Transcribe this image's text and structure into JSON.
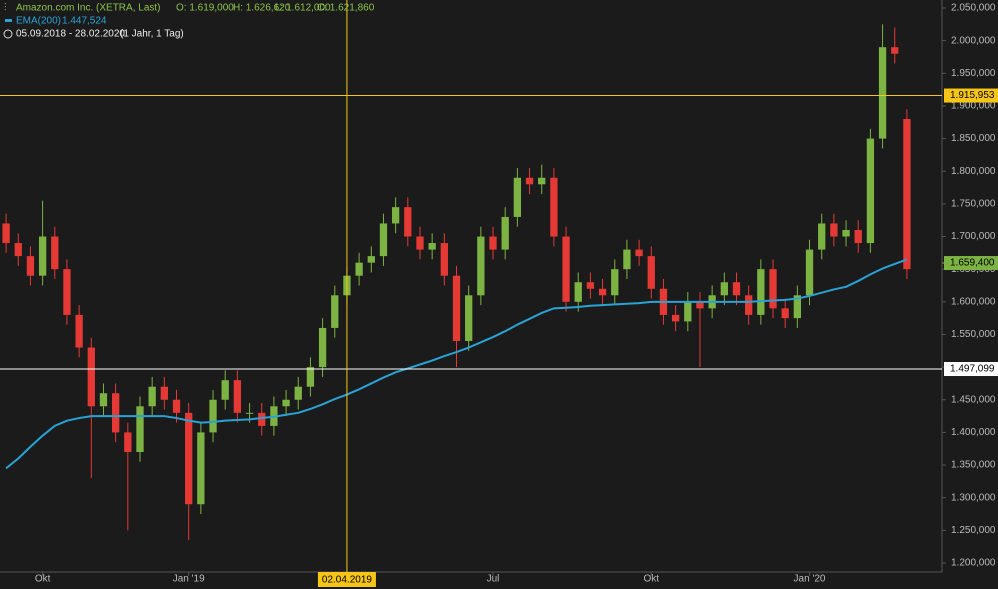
{
  "header": {
    "instrument": "Amazon.com Inc. (XETRA, Last)",
    "open": "O: 1.619,000",
    "high": "H: 1.626,620",
    "low": "L: 1.612,000",
    "close": "C: 1.621,860",
    "indicator": "EMA(200)",
    "indicator_value": "1.447,524",
    "range": "05.09.2018 - 28.02.2020",
    "period": "(1 Jahr, 1 Tag)"
  },
  "chart_data": {
    "type": "candlestick",
    "categories": [
      null,
      null,
      null,
      "Okt",
      null,
      null,
      null,
      null,
      null,
      null,
      null,
      null,
      null,
      null,
      null,
      "Jan '19",
      null,
      null,
      null,
      null,
      null,
      null,
      null,
      null,
      null,
      null,
      null,
      null,
      "02.04.2019",
      null,
      null,
      null,
      null,
      null,
      null,
      null,
      null,
      null,
      null,
      null,
      "Jul",
      null,
      null,
      null,
      null,
      null,
      null,
      null,
      null,
      null,
      null,
      null,
      null,
      "Okt",
      null,
      null,
      null,
      null,
      null,
      null,
      null,
      null,
      null,
      null,
      null,
      null,
      "Jan '20",
      null,
      null,
      null,
      null,
      null,
      null,
      null,
      null
    ],
    "open": [
      1720,
      1690,
      1670,
      1640,
      1700,
      1650,
      1580,
      1530,
      1440,
      1460,
      1400,
      1370,
      1440,
      1470,
      1450,
      1430,
      1290,
      1400,
      1450,
      1480,
      1430,
      1430,
      1410,
      1440,
      1450,
      1470,
      1500,
      1560,
      1610,
      1640,
      1660,
      1670,
      1720,
      1745,
      1700,
      1680,
      1690,
      1640,
      1540,
      1610,
      1700,
      1680,
      1730,
      1790,
      1780,
      1790,
      1700,
      1600,
      1630,
      1620,
      1610,
      1650,
      1680,
      1670,
      1620,
      1580,
      1570,
      1600,
      1590,
      1610,
      1630,
      1610,
      1580,
      1650,
      1590,
      1575,
      1610,
      1680,
      1720,
      1700,
      1710,
      1690,
      1850,
      1990,
      1880
    ],
    "high": [
      1735,
      1705,
      1685,
      1755,
      1715,
      1665,
      1595,
      1545,
      1475,
      1475,
      1415,
      1455,
      1485,
      1485,
      1465,
      1445,
      1415,
      1465,
      1495,
      1495,
      1445,
      1445,
      1455,
      1465,
      1485,
      1515,
      1575,
      1625,
      1655,
      1675,
      1685,
      1735,
      1760,
      1760,
      1715,
      1705,
      1705,
      1655,
      1625,
      1715,
      1715,
      1745,
      1805,
      1805,
      1810,
      1805,
      1715,
      1645,
      1645,
      1635,
      1665,
      1695,
      1695,
      1685,
      1635,
      1595,
      1615,
      1615,
      1625,
      1645,
      1645,
      1625,
      1665,
      1665,
      1605,
      1625,
      1695,
      1735,
      1735,
      1725,
      1725,
      1865,
      2025,
      2020,
      1895
    ],
    "low": [
      1675,
      1655,
      1625,
      1625,
      1635,
      1565,
      1515,
      1330,
      1425,
      1385,
      1250,
      1355,
      1425,
      1435,
      1415,
      1235,
      1275,
      1385,
      1435,
      1415,
      1415,
      1395,
      1395,
      1425,
      1435,
      1455,
      1485,
      1545,
      1595,
      1625,
      1645,
      1655,
      1705,
      1685,
      1665,
      1665,
      1625,
      1500,
      1525,
      1595,
      1665,
      1665,
      1715,
      1765,
      1765,
      1685,
      1585,
      1585,
      1605,
      1595,
      1595,
      1635,
      1655,
      1605,
      1565,
      1555,
      1555,
      1500,
      1575,
      1595,
      1595,
      1565,
      1565,
      1575,
      1560,
      1560,
      1595,
      1665,
      1685,
      1685,
      1675,
      1675,
      1835,
      1965,
      1635
    ],
    "close": [
      1690,
      1670,
      1640,
      1700,
      1650,
      1580,
      1530,
      1440,
      1460,
      1400,
      1370,
      1440,
      1470,
      1450,
      1430,
      1290,
      1400,
      1450,
      1480,
      1430,
      1430,
      1410,
      1440,
      1450,
      1470,
      1500,
      1560,
      1610,
      1640,
      1660,
      1670,
      1720,
      1745,
      1700,
      1680,
      1690,
      1640,
      1540,
      1610,
      1700,
      1680,
      1730,
      1790,
      1780,
      1790,
      1700,
      1600,
      1630,
      1620,
      1610,
      1650,
      1680,
      1670,
      1620,
      1580,
      1570,
      1600,
      1590,
      1610,
      1630,
      1610,
      1580,
      1650,
      1590,
      1575,
      1610,
      1680,
      1720,
      1700,
      1710,
      1690,
      1850,
      1990,
      1980,
      1650
    ],
    "up_color": "#7cb342",
    "down_color": "#e53935",
    "series": [
      {
        "name": "EMA(200)",
        "color": "#29a3d6",
        "values": [
          1345,
          1360,
          1378,
          1395,
          1410,
          1418,
          1422,
          1425,
          1425,
          1425,
          1425,
          1425,
          1425,
          1425,
          1422,
          1418,
          1415,
          1416,
          1418,
          1419,
          1420,
          1422,
          1424,
          1427,
          1430,
          1436,
          1443,
          1451,
          1458,
          1466,
          1475,
          1484,
          1492,
          1498,
          1504,
          1510,
          1517,
          1523,
          1530,
          1538,
          1546,
          1555,
          1565,
          1574,
          1583,
          1590,
          1591,
          1592,
          1594,
          1595,
          1596,
          1597,
          1598,
          1600,
          1600,
          1600,
          1600,
          1600,
          1600,
          1600,
          1600,
          1600,
          1601,
          1602,
          1603,
          1605,
          1609,
          1614,
          1619,
          1623,
          1632,
          1642,
          1651,
          1658,
          1665
        ]
      }
    ],
    "ylim": [
      1200,
      2050
    ],
    "yticks": [
      {
        "value": 1200,
        "label": "1.200,000"
      },
      {
        "value": 1250,
        "label": "1.250,000"
      },
      {
        "value": 1300,
        "label": "1.300,000"
      },
      {
        "value": 1350,
        "label": "1.350,000"
      },
      {
        "value": 1400,
        "label": "1.400,000"
      },
      {
        "value": 1450,
        "label": "1.450,000"
      },
      {
        "value": 1500,
        "label": "1.500,000"
      },
      {
        "value": 1550,
        "label": "1.550,000"
      },
      {
        "value": 1600,
        "label": "1.600,000"
      },
      {
        "value": 1650,
        "label": "1.650,000"
      },
      {
        "value": 1700,
        "label": "1.700,000"
      },
      {
        "value": 1750,
        "label": "1.750,000"
      },
      {
        "value": 1800,
        "label": "1.800,000"
      },
      {
        "value": 1850,
        "label": "1.850,000"
      },
      {
        "value": 1900,
        "label": "1.900,000"
      },
      {
        "value": 1950,
        "label": "1.950,000"
      },
      {
        "value": 2000,
        "label": "2.000,000"
      },
      {
        "value": 2050,
        "label": "2.050,000"
      }
    ],
    "crosshair_index": 28,
    "levels": [
      {
        "value": 1915.953,
        "label": "1.915,953",
        "color": "#f5c518"
      },
      {
        "value": 1497.099,
        "label": "1.497,099",
        "color": "#ffffff"
      },
      {
        "value": 1659.4,
        "label": "1.659,400",
        "color": "#7cb342"
      }
    ]
  }
}
